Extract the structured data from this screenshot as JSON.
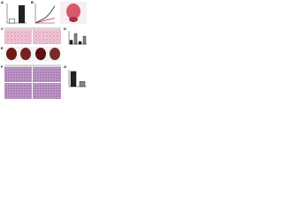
{
  "panels": [
    "A",
    "B",
    "C",
    "D",
    "E",
    "F",
    "G"
  ],
  "chart_data": [
    {
      "type": "bar",
      "categories": [
        null,
        null
      ],
      "values": [
        2,
        9
      ],
      "colors": [
        "#ffffff",
        "#222222"
      ],
      "ylim": [
        0,
        10
      ]
    },
    {
      "type": "line",
      "x": [
        0,
        1,
        2,
        3,
        4
      ],
      "xlim": [
        0,
        4
      ],
      "ylim": [
        0,
        8
      ],
      "series": [
        {
          "color": "#222222",
          "values": [
            0,
            1,
            2,
            4,
            7
          ]
        },
        {
          "color": "#d62728",
          "values": [
            0,
            0.5,
            1,
            1.5,
            2
          ]
        }
      ]
    },
    {
      "type": "bar",
      "categories": [
        null,
        null,
        null,
        null
      ],
      "values": [
        3,
        8,
        2,
        6
      ],
      "colors": [
        "#222222",
        "#888888",
        "#222222",
        "#888888"
      ],
      "ylim": [
        0,
        10
      ]
    },
    {
      "type": "bar",
      "categories": [
        null,
        null
      ],
      "values": [
        9,
        3
      ],
      "colors": [
        "#222222",
        "#888888"
      ],
      "ylim": [
        0,
        10
      ]
    }
  ]
}
